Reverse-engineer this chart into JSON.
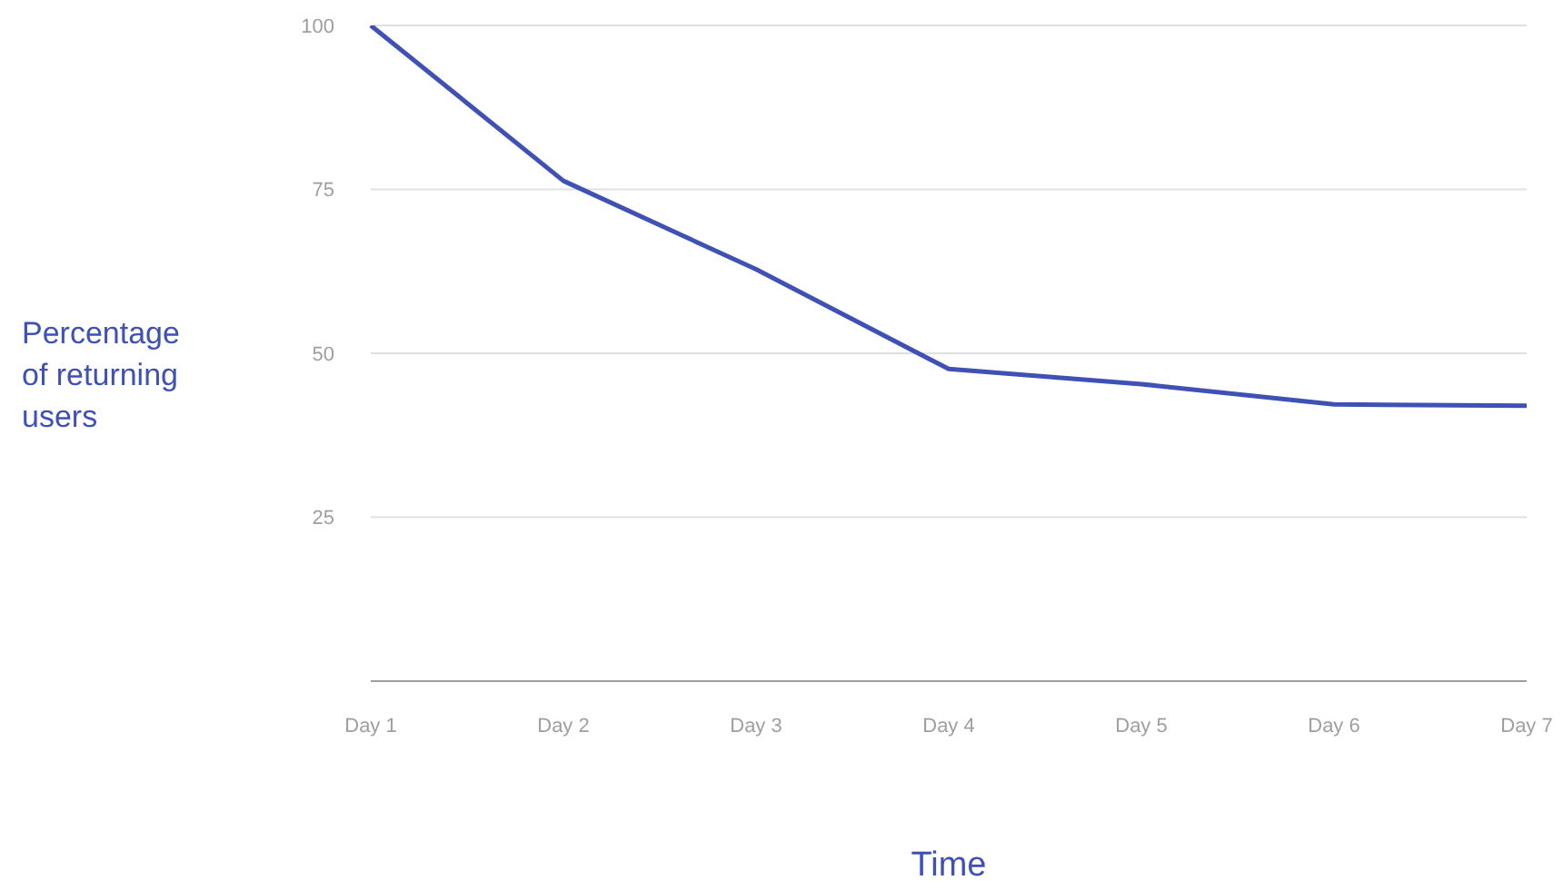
{
  "chart_data": {
    "type": "line",
    "xlabel": "Time",
    "ylabel": "Percentage\nof returning\nusers",
    "categories": [
      "Day 1",
      "Day 2",
      "Day 3",
      "Day 4",
      "Day 5",
      "Day 6",
      "Day 7"
    ],
    "series": [
      {
        "color": "#3f51b5",
        "values": [
          100,
          76.3,
          62.8,
          47.6,
          45.3,
          42.2,
          42
        ]
      }
    ],
    "ylim": [
      0,
      100
    ],
    "yticks": [
      25,
      50,
      75,
      100
    ],
    "grid": "y",
    "marker": "none",
    "line_style": "solid"
  }
}
